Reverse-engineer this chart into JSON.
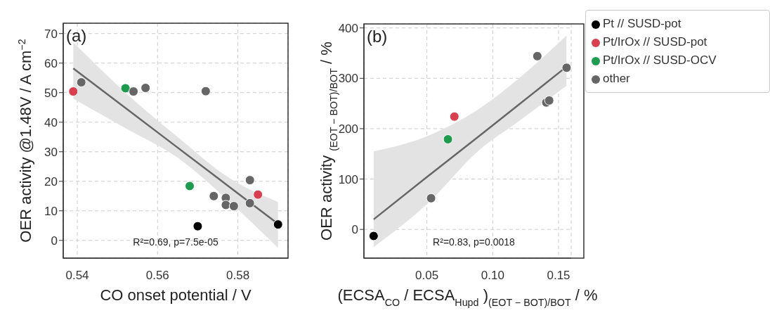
{
  "chart_data": [
    {
      "type": "scatter",
      "xlabel": "CO onset potential / V",
      "ylabel": "OER activity @1.48V / A cm$^{−2}$",
      "annotations": [
        "(a)",
        "R²=0.69, p=7.5e-05"
      ],
      "xlim": [
        0.5365,
        0.5925
      ],
      "xticks": [
        0.54,
        0.56,
        0.58
      ],
      "ylim": [
        -6,
        73.5
      ],
      "yticks": [
        0,
        10,
        20,
        30,
        40,
        50,
        60,
        70
      ],
      "grid": true,
      "marker": "circle",
      "series": [
        {
          "type": "line",
          "marker": "none",
          "color": "#666666",
          "x": [
            0.539,
            0.552,
            0.565,
            0.578,
            0.59
          ],
          "values": [
            58.2,
            44.8,
            31.4,
            18.0,
            5.6
          ],
          "lower": [
            48,
            38,
            28,
            13,
            -2.5
          ],
          "upper": [
            67,
            50,
            35,
            21,
            13
          ]
        },
        {
          "color": "#000000",
          "x": [
            0.57,
            0.59
          ],
          "values": [
            4.8,
            5.4
          ]
        },
        {
          "color": "#d8404f",
          "x": [
            0.539,
            0.585
          ],
          "values": [
            50.4,
            15.5
          ]
        },
        {
          "color": "#1f9b50",
          "x": [
            0.552,
            0.568
          ],
          "values": [
            51.5,
            18.4
          ]
        },
        {
          "color": "#666666",
          "x": [
            0.541,
            0.554,
            0.557,
            0.572,
            0.574,
            0.577,
            0.577,
            0.579,
            0.583,
            0.583
          ],
          "values": [
            53.5,
            50.4,
            51.6,
            50.5,
            15.0,
            14.4,
            12.0,
            11.6,
            20.4,
            12.6
          ]
        }
      ]
    },
    {
      "type": "scatter",
      "xlabel": "(ECSA$_{CO}$ / ECSA$_{Hupd}$)$_{(EOT − BOT)/BOT}$ / %",
      "ylabel": "OER activity $_{(EOT − BOT)/BOT}$ / %",
      "annotations": [
        "(b)",
        "R²=0.83, p=0.0018"
      ],
      "xlim": [
        0.0022,
        0.1596
      ],
      "xticks": [
        0.05,
        {
          "value": 0.1,
          "label": "0.10"
        },
        0.15
      ],
      "ylim": [
        -57,
        408
      ],
      "yticks": [
        0,
        100,
        200,
        300,
        400
      ],
      "grid": true,
      "marker": "circle",
      "legend": "right",
      "series": [
        {
          "type": "line",
          "marker": "none",
          "color": "#666666",
          "x": [
            0.0096,
            0.05,
            0.09,
            0.12,
            0.156
          ],
          "values": [
            20,
            104,
            186,
            248,
            323
          ],
          "lower": [
            -35,
            50,
            158,
            215,
            285
          ],
          "upper": [
            155,
            185,
            240,
            300,
            385
          ]
        },
        {
          "name": "Pt // SUSD-pot",
          "color": "#000000",
          "x": [
            0.0096
          ],
          "values": [
            -13
          ]
        },
        {
          "name": "Pt/IrOx // SUSD-pot",
          "color": "#d8404f",
          "x": [
            0.0709
          ],
          "values": [
            224
          ]
        },
        {
          "name": "Pt/IrOx // SUSD-OCV",
          "color": "#1f9b50",
          "x": [
            0.066
          ],
          "values": [
            179
          ]
        },
        {
          "name": "other",
          "color": "#666666",
          "x": [
            0.0532,
            0.1339,
            0.1407,
            0.1429,
            0.1561
          ],
          "values": [
            62,
            344,
            252,
            256,
            321
          ]
        }
      ]
    }
  ]
}
